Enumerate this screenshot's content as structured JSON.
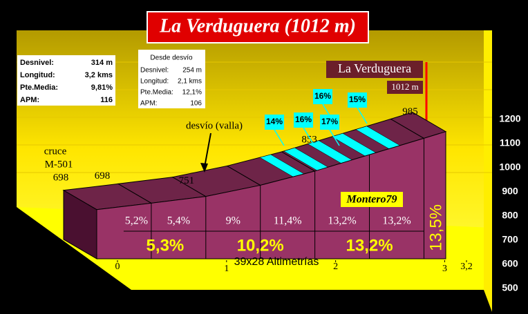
{
  "chart_data": {
    "type": "profile",
    "title": "La Verduguera (1012 m)",
    "stats": {
      "rows": [
        {
          "label": "Desnivel:",
          "value": "314 m"
        },
        {
          "label": "Longitud:",
          "value": "3,2 kms"
        },
        {
          "label": "Pte.Media:",
          "value": "9,81%"
        },
        {
          "label": "APM:",
          "value": "116"
        }
      ]
    },
    "detour_stats": {
      "title": "Desde desvío",
      "rows": [
        {
          "label": "Desnivel:",
          "value": "254 m"
        },
        {
          "label": "Longitud:",
          "value": "2,1 kms"
        },
        {
          "label": "Pte.Media:",
          "value": "12,1%"
        },
        {
          "label": "APM:",
          "value": "106"
        }
      ]
    },
    "summit": {
      "name": "La Verduguera",
      "elevation_label": "1012 m"
    },
    "x": [
      0,
      0.5,
      1,
      1.5,
      2,
      2.5,
      3,
      3.2
    ],
    "values": [
      698,
      724,
      751,
      796,
      853,
      919,
      985,
      1012
    ],
    "value_labels": [
      "698",
      null,
      "751",
      null,
      "853",
      null,
      "985",
      null
    ],
    "segment_grades": [
      "5,2%",
      "5,4%",
      "9%",
      "11,4%",
      "13,2%",
      "13,2%",
      "13,5%"
    ],
    "km_grades": [
      "5,3%",
      "10,2%",
      "13,2%"
    ],
    "fine_grades": [
      "14%",
      "16%",
      "17%",
      "16%",
      "15%"
    ],
    "annotations": {
      "detour": "desvío (valla)",
      "cross": "cruce",
      "road": "M-501",
      "cross_elevation": "698",
      "author": "Montero79",
      "credit": "39x28 Altimetrías"
    },
    "xlim": [
      0,
      3.2
    ],
    "xticks": [
      0,
      1,
      2,
      3,
      {
        "value": 3.2,
        "label": "3,2"
      }
    ],
    "ylim": [
      500,
      1200
    ],
    "yticks": [
      500,
      600,
      700,
      800,
      900,
      1000,
      1100,
      1200
    ],
    "colors": {
      "face": "#993366",
      "top": "#6e2448",
      "stripe": "#00ffff",
      "grade_text": "#ffff00"
    }
  }
}
